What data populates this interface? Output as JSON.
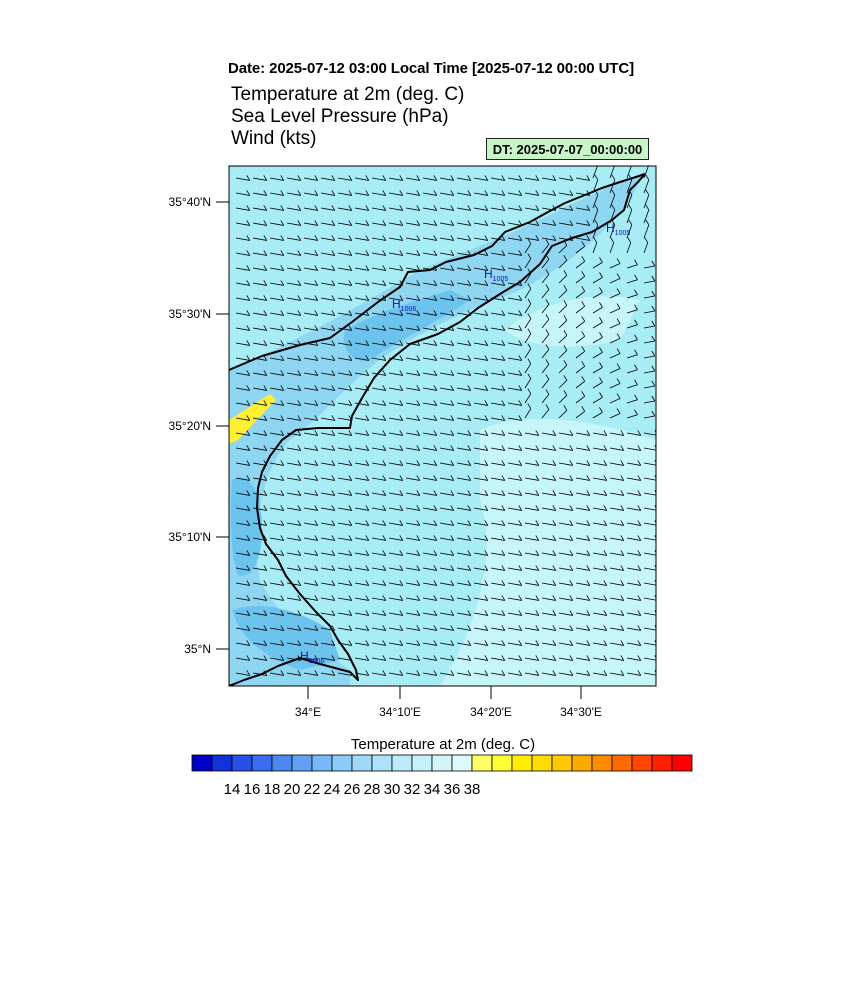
{
  "header": {
    "date_line": "Date: 2025-07-12  03:00 Local Time [2025-07-12  00:00 UTC]",
    "fields": [
      "Temperature at 2m   (deg. C)",
      "Sea Level Pressure   (hPa)",
      "Wind   (kts)"
    ],
    "dt_badge": "DT: 2025-07-07_00:00:00"
  },
  "map": {
    "lat_labels": [
      "35°40'N",
      "35°30'N",
      "35°20'N",
      "35°10'N",
      "35°N"
    ],
    "lon_labels": [
      "34°E",
      "34°10'E",
      "34°20'E",
      "34°30'E"
    ],
    "pressure_highs": [
      {
        "symbol": "H",
        "value": "1006"
      },
      {
        "symbol": "H",
        "value": "1005"
      },
      {
        "symbol": "H",
        "value": "1005"
      },
      {
        "symbol": "H",
        "value": "1006"
      }
    ],
    "colors": {
      "sea_main": "#a8ecf6",
      "sea_light": "#c6f6fa",
      "land_mid": "#8fd6f2",
      "land_dark": "#6cc3ee",
      "warm_spot": "#ffef33",
      "coast": "#000000",
      "high_label": "#1010c0"
    }
  },
  "colorbar": {
    "title": "Temperature at 2m  (deg. C)",
    "labels": [
      "14",
      "16",
      "18",
      "20",
      "22",
      "24",
      "26",
      "28",
      "30",
      "32",
      "34",
      "36",
      "38"
    ],
    "colors": [
      "#0000c8",
      "#1230dc",
      "#2850e8",
      "#3a6cf0",
      "#4c88f4",
      "#62a0f6",
      "#78b8f8",
      "#8ccaf8",
      "#a0d8f8",
      "#aee2fa",
      "#bcebfb",
      "#c6f1fb",
      "#d2f5fb",
      "#ddf9fb",
      "#ffff66",
      "#ffff33",
      "#ffee00",
      "#ffdc00",
      "#ffc800",
      "#ffaa00",
      "#ff8c00",
      "#ff6a00",
      "#ff4600",
      "#ff2000",
      "#ff0000"
    ]
  }
}
